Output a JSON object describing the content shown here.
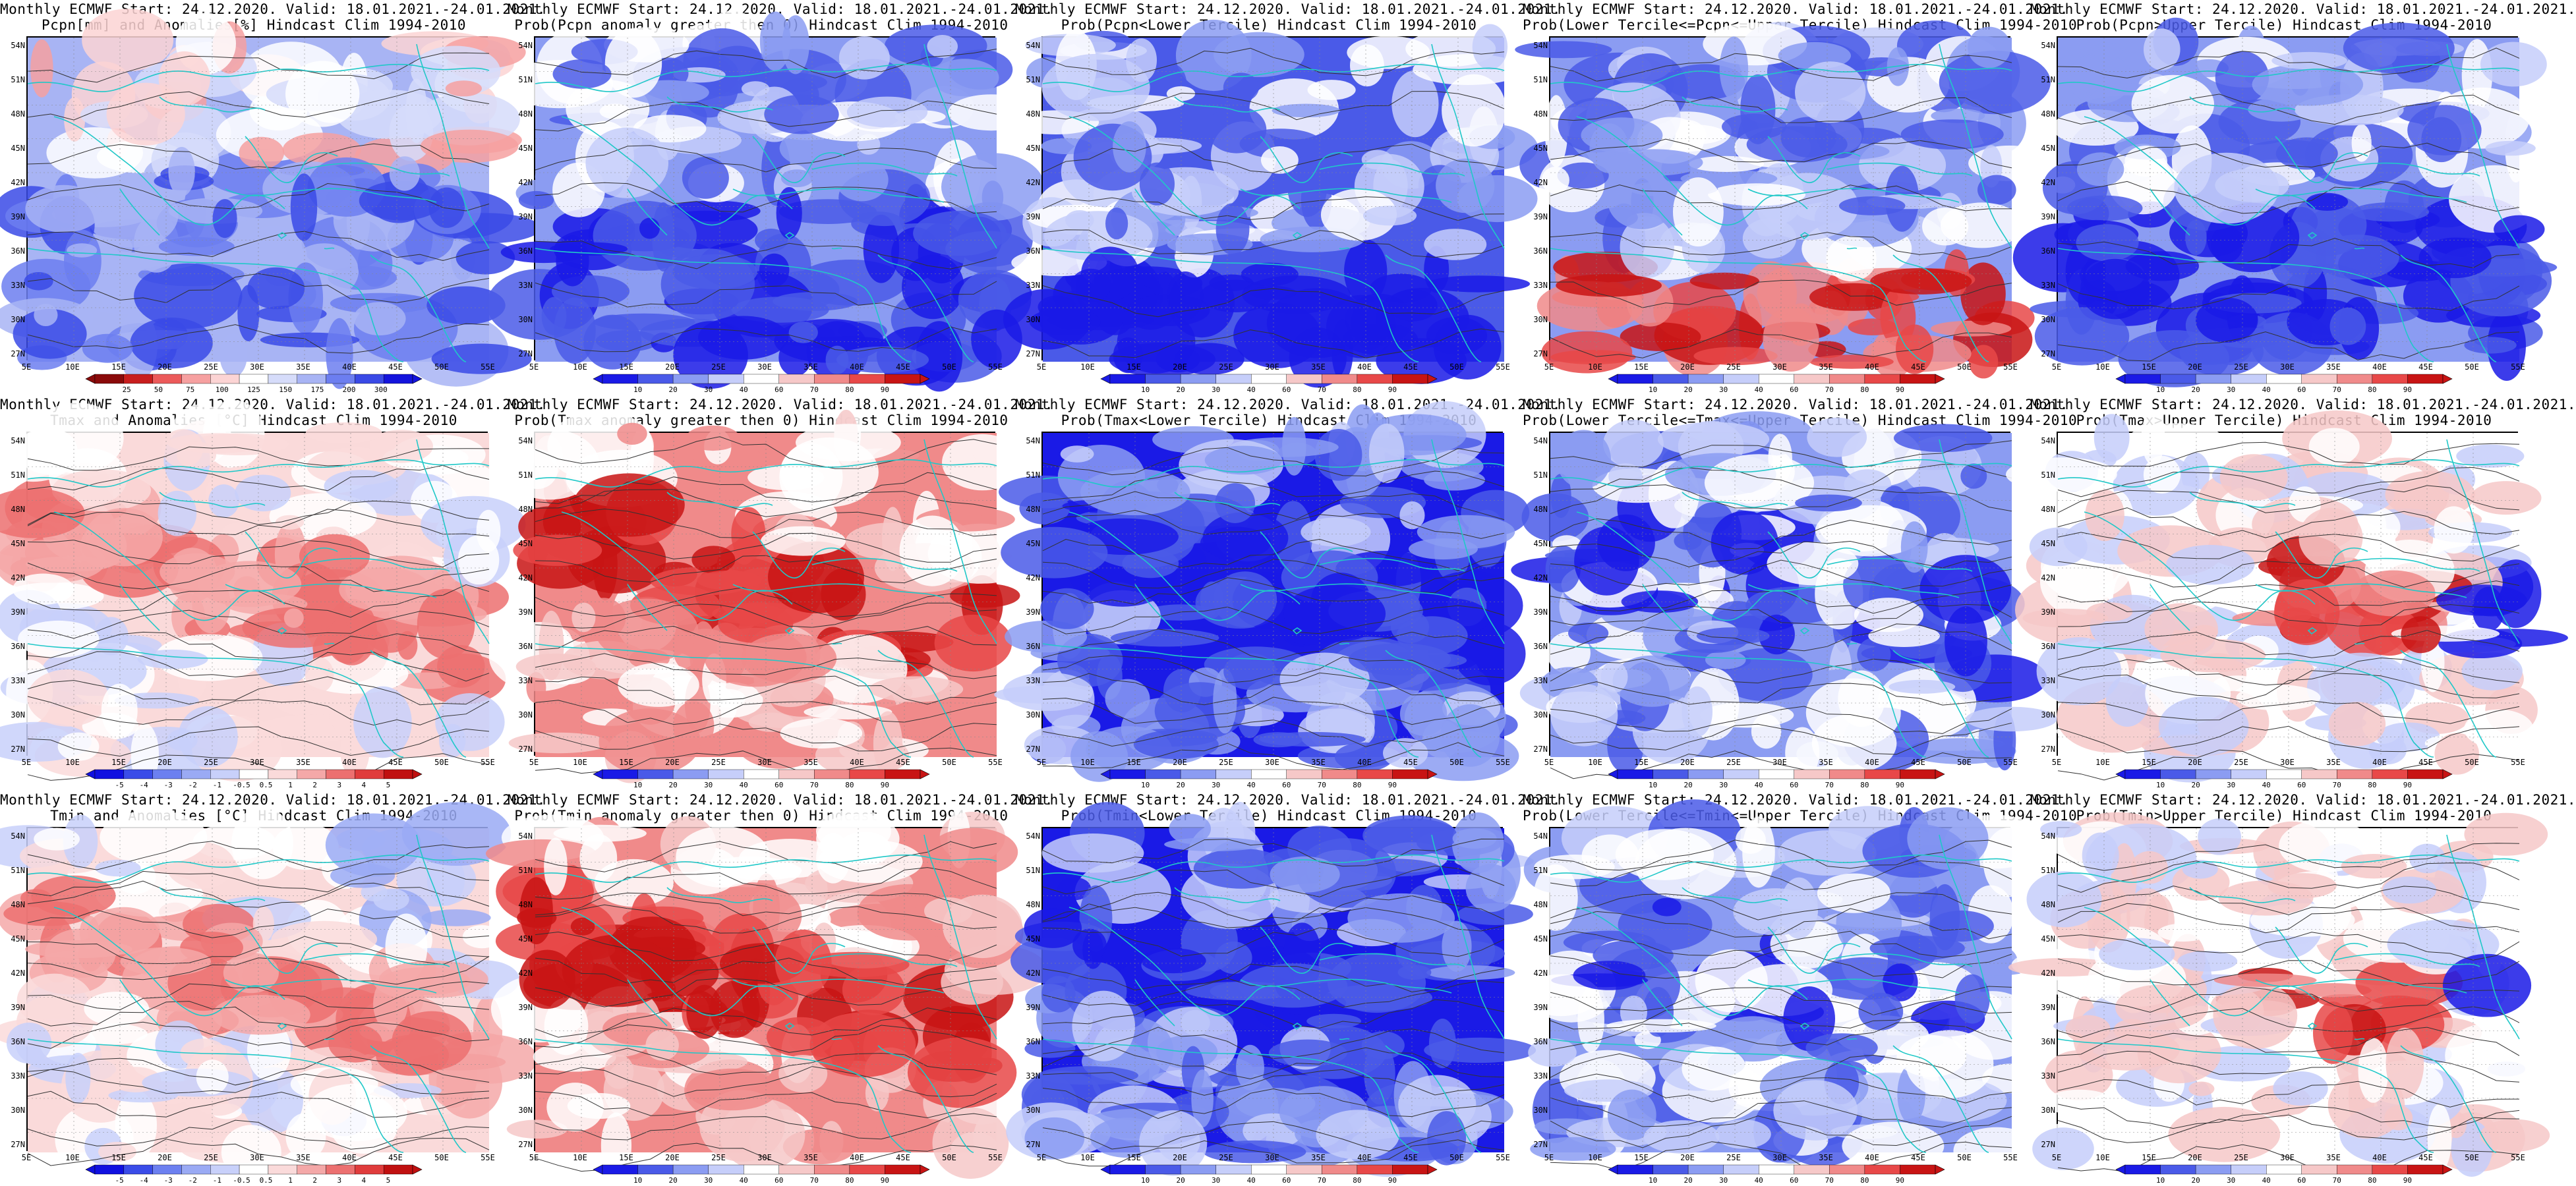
{
  "figure": {
    "rows": [
      {
        "variable": "pcpn",
        "panels": [
          {
            "title1": "Monthly ECMWF Start: 24.12.2020. Valid: 18.01.2021.-24.01.2021.",
            "title2": "Pcpn[mm] and Anomalies[%] Hindcast Clim 1994-2010",
            "type": "anomaly",
            "palette": "pcpn",
            "colorbar": [
              "25",
              "50",
              "75",
              "100",
              "125",
              "150",
              "175",
              "200",
              "300"
            ]
          },
          {
            "title1": "Monthly ECMWF Start: 24.12.2020. Valid: 18.01.2021.-24.01.2021.",
            "title2": "Prob(Pcpn anomaly greater then 0) Hindcast Clim 1994-2010",
            "type": "prob",
            "palette": "prob",
            "colorbar": [
              "10",
              "20",
              "30",
              "40",
              "60",
              "70",
              "80",
              "90"
            ]
          },
          {
            "title1": "Monthly ECMWF Start: 24.12.2020. Valid: 18.01.2021.-24.01.2021.",
            "title2": "Prob(Pcpn<Lower Tercile) Hindcast Clim 1994-2010",
            "type": "prob",
            "palette": "prob",
            "colorbar": [
              "10",
              "20",
              "30",
              "40",
              "60",
              "70",
              "80",
              "90"
            ]
          },
          {
            "title1": "Monthly ECMWF Start: 24.12.2020. Valid: 18.01.2021.-24.01.2021.",
            "title2": "Prob(Lower Tercile<=Pcpn<=Upper Tercile) Hindcast Clim 1994-2010",
            "type": "prob",
            "palette": "prob",
            "colorbar": [
              "10",
              "20",
              "30",
              "40",
              "60",
              "70",
              "80",
              "90"
            ]
          },
          {
            "title1": "Monthly ECMWF Start: 24.12.2020. Valid: 18.01.2021.-24.01.2021.",
            "title2": "Prob(Pcpn>Upper Tercile) Hindcast Clim 1994-2010",
            "type": "prob",
            "palette": "prob",
            "colorbar": [
              "10",
              "20",
              "30",
              "40",
              "60",
              "70",
              "80",
              "90"
            ]
          }
        ]
      },
      {
        "variable": "tmax",
        "panels": [
          {
            "title1": "Monthly ECMWF Start: 24.12.2020. Valid: 18.01.2021.-24.01.2021.",
            "title2": "Tmax and Anomalies [°C] Hindcast Clim 1994-2010",
            "type": "anomaly",
            "palette": "temp",
            "colorbar": [
              "-5",
              "-4",
              "-3",
              "-2",
              "-1",
              "-0.5",
              "0.5",
              "1",
              "2",
              "3",
              "4",
              "5"
            ]
          },
          {
            "title1": "Monthly ECMWF Start: 24.12.2020. Valid: 18.01.2021.-24.01.2021.",
            "title2": "Prob(Tmax anomaly greater then 0) Hindcast Clim 1994-2010",
            "type": "prob",
            "palette": "prob",
            "colorbar": [
              "10",
              "20",
              "30",
              "40",
              "60",
              "70",
              "80",
              "90"
            ]
          },
          {
            "title1": "Monthly ECMWF Start: 24.12.2020. Valid: 18.01.2021.-24.01.2021.",
            "title2": "Prob(Tmax<Lower Tercile) Hindcast Clim 1994-2010",
            "type": "prob",
            "palette": "prob",
            "colorbar": [
              "10",
              "20",
              "30",
              "40",
              "60",
              "70",
              "80",
              "90"
            ]
          },
          {
            "title1": "Monthly ECMWF Start: 24.12.2020. Valid: 18.01.2021.-24.01.2021.",
            "title2": "Prob(Lower Tercile<=Tmax<=Upper Tercile) Hindcast Clim 1994-2010",
            "type": "prob",
            "palette": "prob",
            "colorbar": [
              "10",
              "20",
              "30",
              "40",
              "60",
              "70",
              "80",
              "90"
            ]
          },
          {
            "title1": "Monthly ECMWF Start: 24.12.2020. Valid: 18.01.2021.-24.01.2021.",
            "title2": "Prob(Tmax>Upper Tercile) Hindcast Clim 1994-2010",
            "type": "prob",
            "palette": "prob",
            "colorbar": [
              "10",
              "20",
              "30",
              "40",
              "60",
              "70",
              "80",
              "90"
            ]
          }
        ]
      },
      {
        "variable": "tmin",
        "panels": [
          {
            "title1": "Monthly ECMWF Start: 24.12.2020. Valid: 18.01.2021.-24.01.2021.",
            "title2": "Tmin and Anomalies [°C] Hindcast Clim 1994-2010",
            "type": "anomaly",
            "palette": "temp",
            "colorbar": [
              "-5",
              "-4",
              "-3",
              "-2",
              "-1",
              "-0.5",
              "0.5",
              "1",
              "2",
              "3",
              "4",
              "5"
            ]
          },
          {
            "title1": "Monthly ECMWF Start: 24.12.2020. Valid: 18.01.2021.-24.01.2021.",
            "title2": "Prob(Tmin anomaly greater then 0) Hindcast Clim 1994-2010",
            "type": "prob",
            "palette": "prob",
            "colorbar": [
              "10",
              "20",
              "30",
              "40",
              "60",
              "70",
              "80",
              "90"
            ]
          },
          {
            "title1": "Monthly ECMWF Start: 24.12.2020. Valid: 18.01.2021.-24.01.2021.",
            "title2": "Prob(Tmin<Lower Tercile) Hindcast Clim 1994-2010",
            "type": "prob",
            "palette": "prob",
            "colorbar": [
              "10",
              "20",
              "30",
              "40",
              "60",
              "70",
              "80",
              "90"
            ]
          },
          {
            "title1": "Monthly ECMWF Start: 24.12.2020. Valid: 18.01.2021.-24.01.2021.",
            "title2": "Prob(Lower Tercile<=Tmin<=Upper Tercile) Hindcast Clim 1994-2010",
            "type": "prob",
            "palette": "prob",
            "colorbar": [
              "10",
              "20",
              "30",
              "40",
              "60",
              "70",
              "80",
              "90"
            ]
          },
          {
            "title1": "Monthly ECMWF Start: 24.12.2020. Valid: 18.01.2021.-24.01.2021.",
            "title2": "Prob(Tmin>Upper Tercile) Hindcast Clim 1994-2010",
            "type": "prob",
            "palette": "prob",
            "colorbar": [
              "10",
              "20",
              "30",
              "40",
              "60",
              "70",
              "80",
              "90"
            ]
          }
        ]
      }
    ],
    "lat_ticks": [
      "54N",
      "51N",
      "48N",
      "45N",
      "42N",
      "39N",
      "36N",
      "33N",
      "30N",
      "27N"
    ],
    "lon_ticks": [
      "5E",
      "10E",
      "15E",
      "20E",
      "25E",
      "30E",
      "35E",
      "40E",
      "45E",
      "50E",
      "55E"
    ],
    "colors": {
      "coastline": "#20c8c8",
      "contour": "#333333",
      "palette_prob": [
        "#1a1ae6",
        "#4a5ae8",
        "#8b9cf2",
        "#c6cefa",
        "#ffffff",
        "#f6c8c8",
        "#f08a8a",
        "#e84848",
        "#c81414"
      ],
      "palette_temp": [
        "#1010e0",
        "#3a4ce8",
        "#6c80f0",
        "#9aaaf4",
        "#c8d0fa",
        "#ffffff",
        "#fadada",
        "#f4a8a8",
        "#ec7070",
        "#e03c3c",
        "#c01010"
      ],
      "palette_pcpn": [
        "#8a0a0a",
        "#c81e1e",
        "#ec5a5a",
        "#f6a0a0",
        "#fcd4d4",
        "#ffffff",
        "#d6dcfa",
        "#a8b4f4",
        "#6c7ef0",
        "#3a4ae6",
        "#1414dc"
      ]
    }
  }
}
